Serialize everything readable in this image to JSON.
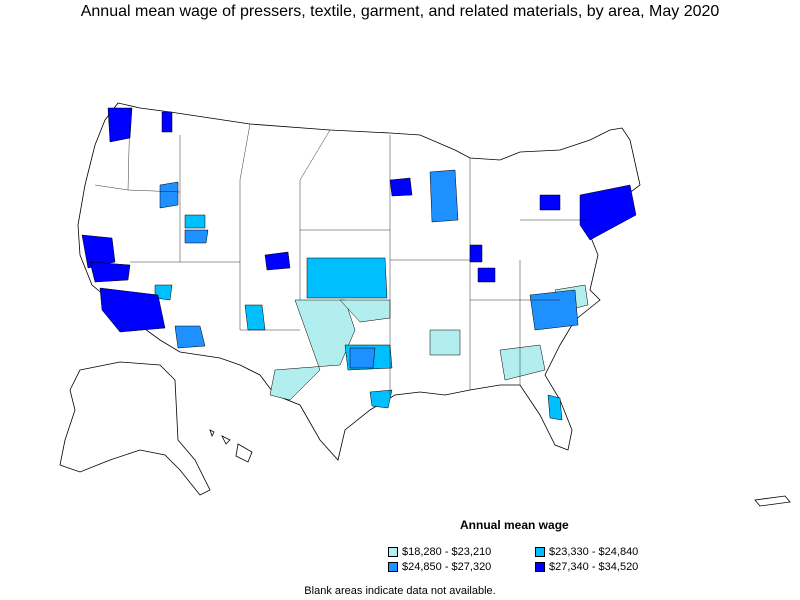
{
  "title": "Annual mean wage of pressers, textile, garment, and related materials, by area, May 2020",
  "legend": {
    "title": "Annual mean wage",
    "items": [
      {
        "label": "$18,280 - $23,210",
        "color": "#b2eeee"
      },
      {
        "label": "$23,330 - $24,840",
        "color": "#00bfff"
      },
      {
        "label": "$24,850 - $27,320",
        "color": "#1e90ff"
      },
      {
        "label": "$27,340 - $34,520",
        "color": "#0000ff"
      }
    ]
  },
  "footnote": "Blank areas indicate data not available.",
  "colors": {
    "outline": "#000000",
    "no_data": "#ffffff"
  }
}
